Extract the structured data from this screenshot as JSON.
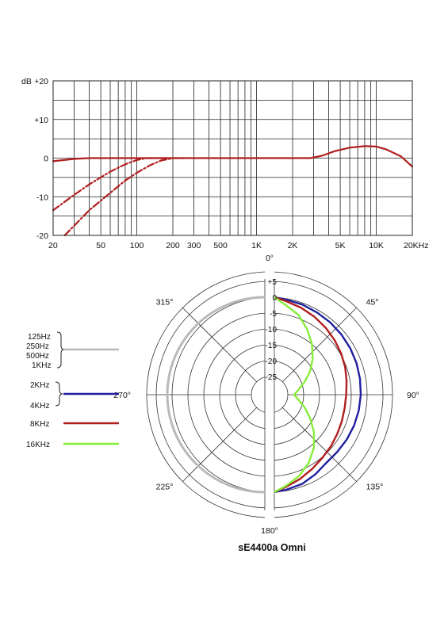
{
  "colors": {
    "gray": "#b9b9b9",
    "blue": "#1f1fa0",
    "red": "#b21e1e",
    "green": "#86ee3a",
    "grid": "#222222"
  },
  "model_title": "sE4400a Omni",
  "chart_data": [
    {
      "type": "line",
      "scale_x": "log",
      "xlim": [
        20,
        20000
      ],
      "ylim": [
        -20,
        20
      ],
      "grid": true,
      "y_unit_label": "dB",
      "y_ticks": [
        {
          "value": 20,
          "label": "+20"
        },
        {
          "value": 10,
          "label": "+10"
        },
        {
          "value": 0,
          "label": "0"
        },
        {
          "value": -10,
          "label": "-10"
        },
        {
          "value": -20,
          "label": "-20"
        }
      ],
      "x_ticks": [
        {
          "value": 20,
          "label": "20"
        },
        {
          "value": 50,
          "label": "50"
        },
        {
          "value": 100,
          "label": "100"
        },
        {
          "value": 200,
          "label": "200"
        },
        {
          "value": 300,
          "label": "300"
        },
        {
          "value": 500,
          "label": "500"
        },
        {
          "value": 1000,
          "label": "1K"
        },
        {
          "value": 2000,
          "label": "2K"
        },
        {
          "value": 5000,
          "label": "5K"
        },
        {
          "value": 10000,
          "label": "10K"
        },
        {
          "value": 20000,
          "label": "20KHz"
        }
      ],
      "series": [
        {
          "color": "#b21e1e",
          "dashed": false,
          "x": [
            20,
            30,
            40,
            60,
            100,
            200,
            500,
            1000,
            2000,
            2800,
            3500,
            4500,
            6000,
            8000,
            10000,
            12000,
            16000,
            20000
          ],
          "y": [
            -0.8,
            -0.2,
            0,
            0,
            0,
            0,
            0,
            0,
            0,
            0,
            0.6,
            1.8,
            2.7,
            3.1,
            3.0,
            2.3,
            0.5,
            -2.2
          ]
        },
        {
          "color": "#b21e1e",
          "dashed": true,
          "x": [
            20,
            30,
            40,
            60,
            80,
            100,
            120,
            150,
            200
          ],
          "y": [
            -13.5,
            -9.5,
            -6.8,
            -3.5,
            -1.6,
            -0.5,
            0,
            0,
            0
          ]
        },
        {
          "color": "#b21e1e",
          "dashed": true,
          "x": [
            25,
            30,
            40,
            60,
            80,
            100,
            130,
            160,
            200,
            250
          ],
          "y": [
            -20,
            -17.5,
            -13.5,
            -9,
            -5.8,
            -3.8,
            -1.8,
            -0.6,
            0,
            0
          ]
        }
      ]
    },
    {
      "type": "polar",
      "rlim": [
        -25,
        5
      ],
      "ring_labels": [
        "+5",
        "0",
        "-5",
        "-10",
        "-15",
        "-20",
        "-25"
      ],
      "angle_labels": [
        {
          "deg": 0,
          "label": "0°"
        },
        {
          "deg": 45,
          "label": "45°"
        },
        {
          "deg": 90,
          "label": "90°"
        },
        {
          "deg": 135,
          "label": "135°"
        },
        {
          "deg": 180,
          "label": "180°"
        },
        {
          "deg": 225,
          "label": "225°"
        },
        {
          "deg": 270,
          "label": "270°"
        },
        {
          "deg": 315,
          "label": "315°"
        }
      ],
      "series": [
        {
          "name": "125Hz 250Hz 500Hz 1KHz",
          "color": "#b9b9b9",
          "angles": [
            0,
            180
          ],
          "values": [
            0,
            0
          ]
        },
        {
          "name": "2KHz 4KHz",
          "color": "#1f1fa0",
          "angles": [
            0,
            10,
            20,
            30,
            40,
            50,
            60,
            70,
            80,
            90,
            100,
            110,
            120,
            130,
            140,
            150,
            160,
            170,
            180
          ],
          "values": [
            0,
            -0.3,
            -0.5,
            -0.8,
            -1,
            -1.2,
            -1.4,
            -1.6,
            -1.8,
            -2,
            -2.2,
            -2.4,
            -2.6,
            -2.8,
            -2.8,
            -1.8,
            -0.8,
            -0.3,
            0
          ]
        },
        {
          "name": "8KHz",
          "color": "#b21e1e",
          "angles": [
            0,
            10,
            20,
            30,
            40,
            50,
            60,
            70,
            80,
            90,
            100,
            110,
            120,
            130,
            140,
            150,
            160,
            170,
            180
          ],
          "values": [
            0,
            -0.8,
            -1.6,
            -2.4,
            -3.2,
            -4,
            -4.7,
            -5.4,
            -6.1,
            -6.6,
            -6.7,
            -6.5,
            -6.1,
            -5.5,
            -4.8,
            -3.8,
            -2.5,
            -1.2,
            0
          ]
        },
        {
          "name": "16KHz",
          "color": "#86ee3a",
          "angles": [
            0,
            10,
            20,
            30,
            40,
            50,
            60,
            70,
            80,
            90,
            100,
            110,
            120,
            130,
            140,
            150,
            160,
            170,
            180
          ],
          "values": [
            0,
            -2,
            -4,
            -7,
            -10,
            -13,
            -16,
            -19,
            -21.5,
            -23,
            -21.5,
            -19,
            -16,
            -12.5,
            -9,
            -6,
            -3.5,
            -1.5,
            0
          ]
        }
      ],
      "legend": [
        {
          "labels": [
            "125Hz",
            "250Hz",
            "500Hz",
            "1KHz"
          ],
          "color": "#b9b9b9"
        },
        {
          "labels": [
            "2KHz",
            "4KHz"
          ],
          "color": "#1f1fa0"
        },
        {
          "labels": [
            "8KHz"
          ],
          "color": "#b21e1e"
        },
        {
          "labels": [
            "16KHz"
          ],
          "color": "#86ee3a"
        }
      ]
    }
  ]
}
